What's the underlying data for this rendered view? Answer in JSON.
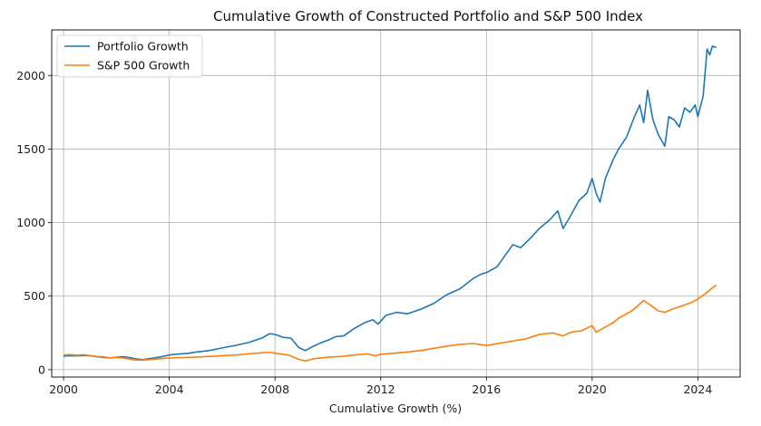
{
  "chart_data": {
    "type": "line",
    "title": "Cumulative Growth of Constructed Portfolio and S&P 500 Index",
    "xlabel": "Cumulative Growth (%)",
    "ylabel": "",
    "xlim": [
      1999.55,
      2025.6
    ],
    "ylim": [
      -50,
      2310
    ],
    "x_ticks": [
      2000,
      2004,
      2008,
      2012,
      2016,
      2020,
      2024
    ],
    "x_tick_labels": [
      "2000",
      "2004",
      "2008",
      "2012",
      "2016",
      "2020",
      "2024"
    ],
    "y_ticks": [
      0,
      500,
      1000,
      1500,
      2000
    ],
    "y_tick_labels": [
      "0",
      "500",
      "1000",
      "1500",
      "2000"
    ],
    "grid": true,
    "legend_position": "top-left",
    "colors": {
      "portfolio": "#1f77b4",
      "sp500": "#ff7f0e"
    },
    "series": [
      {
        "name": "Portfolio Growth",
        "points": [
          [
            2000.0,
            92
          ],
          [
            2000.25,
            95
          ],
          [
            2000.5,
            94
          ],
          [
            2000.75,
            96
          ],
          [
            2001.0,
            96
          ],
          [
            2001.25,
            88
          ],
          [
            2001.5,
            84
          ],
          [
            2001.75,
            80
          ],
          [
            2002.0,
            85
          ],
          [
            2002.25,
            88
          ],
          [
            2002.5,
            82
          ],
          [
            2002.75,
            73
          ],
          [
            2003.0,
            68
          ],
          [
            2003.25,
            75
          ],
          [
            2003.5,
            82
          ],
          [
            2003.75,
            90
          ],
          [
            2004.0,
            100
          ],
          [
            2004.25,
            105
          ],
          [
            2004.5,
            108
          ],
          [
            2004.75,
            112
          ],
          [
            2005.0,
            120
          ],
          [
            2005.5,
            130
          ],
          [
            2006.0,
            148
          ],
          [
            2006.5,
            165
          ],
          [
            2007.0,
            185
          ],
          [
            2007.5,
            215
          ],
          [
            2007.8,
            245
          ],
          [
            2008.0,
            240
          ],
          [
            2008.3,
            220
          ],
          [
            2008.6,
            215
          ],
          [
            2008.9,
            150
          ],
          [
            2009.15,
            130
          ],
          [
            2009.4,
            155
          ],
          [
            2009.7,
            180
          ],
          [
            2010.0,
            200
          ],
          [
            2010.3,
            225
          ],
          [
            2010.6,
            230
          ],
          [
            2011.0,
            280
          ],
          [
            2011.4,
            320
          ],
          [
            2011.7,
            340
          ],
          [
            2011.9,
            310
          ],
          [
            2012.2,
            370
          ],
          [
            2012.6,
            390
          ],
          [
            2013.0,
            380
          ],
          [
            2013.5,
            410
          ],
          [
            2014.0,
            450
          ],
          [
            2014.5,
            510
          ],
          [
            2015.0,
            550
          ],
          [
            2015.5,
            620
          ],
          [
            2015.8,
            650
          ],
          [
            2016.0,
            660
          ],
          [
            2016.4,
            700
          ],
          [
            2016.8,
            800
          ],
          [
            2017.0,
            850
          ],
          [
            2017.3,
            830
          ],
          [
            2017.7,
            900
          ],
          [
            2018.0,
            960
          ],
          [
            2018.4,
            1020
          ],
          [
            2018.7,
            1080
          ],
          [
            2018.9,
            960
          ],
          [
            2019.1,
            1020
          ],
          [
            2019.5,
            1150
          ],
          [
            2019.8,
            1200
          ],
          [
            2020.0,
            1300
          ],
          [
            2020.15,
            1200
          ],
          [
            2020.3,
            1140
          ],
          [
            2020.5,
            1300
          ],
          [
            2020.8,
            1430
          ],
          [
            2021.0,
            1500
          ],
          [
            2021.3,
            1580
          ],
          [
            2021.6,
            1720
          ],
          [
            2021.8,
            1800
          ],
          [
            2021.95,
            1680
          ],
          [
            2022.1,
            1900
          ],
          [
            2022.3,
            1700
          ],
          [
            2022.5,
            1600
          ],
          [
            2022.75,
            1520
          ],
          [
            2022.9,
            1720
          ],
          [
            2023.1,
            1700
          ],
          [
            2023.3,
            1650
          ],
          [
            2023.5,
            1780
          ],
          [
            2023.7,
            1750
          ],
          [
            2023.9,
            1800
          ],
          [
            2024.0,
            1720
          ],
          [
            2024.2,
            1860
          ],
          [
            2024.35,
            2180
          ],
          [
            2024.45,
            2140
          ],
          [
            2024.55,
            2200
          ],
          [
            2024.7,
            2190
          ]
        ]
      },
      {
        "name": "S&P 500 Growth",
        "points": [
          [
            2000.0,
            100
          ],
          [
            2000.25,
            103
          ],
          [
            2000.5,
            98
          ],
          [
            2000.75,
            102
          ],
          [
            2001.0,
            96
          ],
          [
            2001.25,
            90
          ],
          [
            2001.5,
            88
          ],
          [
            2001.75,
            80
          ],
          [
            2002.0,
            84
          ],
          [
            2002.25,
            80
          ],
          [
            2002.5,
            72
          ],
          [
            2002.75,
            66
          ],
          [
            2003.0,
            65
          ],
          [
            2003.5,
            72
          ],
          [
            2004.0,
            80
          ],
          [
            2004.5,
            82
          ],
          [
            2005.0,
            86
          ],
          [
            2005.5,
            90
          ],
          [
            2006.0,
            95
          ],
          [
            2006.5,
            100
          ],
          [
            2007.0,
            108
          ],
          [
            2007.5,
            115
          ],
          [
            2007.8,
            118
          ],
          [
            2008.0,
            112
          ],
          [
            2008.5,
            100
          ],
          [
            2008.9,
            70
          ],
          [
            2009.15,
            60
          ],
          [
            2009.5,
            75
          ],
          [
            2010.0,
            85
          ],
          [
            2010.5,
            90
          ],
          [
            2011.0,
            100
          ],
          [
            2011.5,
            108
          ],
          [
            2011.8,
            95
          ],
          [
            2012.0,
            105
          ],
          [
            2012.5,
            112
          ],
          [
            2013.0,
            120
          ],
          [
            2013.5,
            130
          ],
          [
            2014.0,
            145
          ],
          [
            2014.5,
            160
          ],
          [
            2015.0,
            172
          ],
          [
            2015.5,
            178
          ],
          [
            2015.8,
            170
          ],
          [
            2016.0,
            165
          ],
          [
            2016.5,
            180
          ],
          [
            2017.0,
            195
          ],
          [
            2017.5,
            210
          ],
          [
            2018.0,
            240
          ],
          [
            2018.5,
            250
          ],
          [
            2018.9,
            230
          ],
          [
            2019.2,
            255
          ],
          [
            2019.6,
            265
          ],
          [
            2020.0,
            300
          ],
          [
            2020.15,
            255
          ],
          [
            2020.4,
            280
          ],
          [
            2020.8,
            320
          ],
          [
            2021.0,
            350
          ],
          [
            2021.5,
            400
          ],
          [
            2021.95,
            470
          ],
          [
            2022.2,
            440
          ],
          [
            2022.5,
            400
          ],
          [
            2022.75,
            390
          ],
          [
            2023.0,
            410
          ],
          [
            2023.5,
            440
          ],
          [
            2023.8,
            460
          ],
          [
            2024.0,
            480
          ],
          [
            2024.3,
            520
          ],
          [
            2024.5,
            550
          ],
          [
            2024.7,
            575
          ]
        ]
      }
    ]
  }
}
